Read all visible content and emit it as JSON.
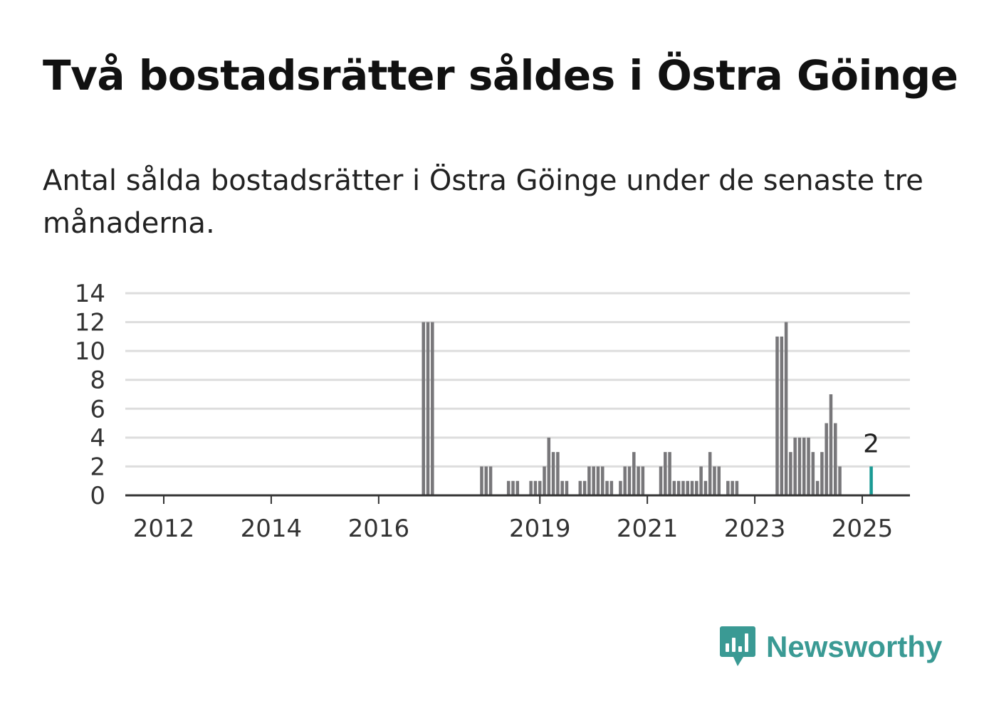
{
  "title": "Två bostadsrätter såldes i Östra Göinge",
  "subtitle": "Antal sålda bostadsrätter i Östra Göinge under de senaste tre månaderna.",
  "logo": {
    "text": "Newsworthy",
    "icon": "newsworthy-logo-icon",
    "color": "#3a9a94"
  },
  "chart_data": {
    "type": "bar",
    "title": "",
    "xlabel": "",
    "ylabel": "",
    "ylim": [
      0,
      14
    ],
    "yticks": [
      0,
      2,
      4,
      6,
      8,
      10,
      12,
      14
    ],
    "xticks": [
      {
        "label": "2012",
        "date": "2012-01"
      },
      {
        "label": "2014",
        "date": "2014-01"
      },
      {
        "label": "2016",
        "date": "2016-01"
      },
      {
        "label": "2019",
        "date": "2019-01"
      },
      {
        "label": "2021",
        "date": "2021-01"
      },
      {
        "label": "2023",
        "date": "2023-01"
      },
      {
        "label": "2025",
        "date": "2025-01"
      }
    ],
    "grid": true,
    "bar_color": "#78777a",
    "highlight_color": "#1a9a94",
    "highlight_label": "2",
    "data": [
      {
        "date": "2016-11",
        "value": 12
      },
      {
        "date": "2016-12",
        "value": 12
      },
      {
        "date": "2017-01",
        "value": 12
      },
      {
        "date": "2017-12",
        "value": 2
      },
      {
        "date": "2018-01",
        "value": 2
      },
      {
        "date": "2018-02",
        "value": 2
      },
      {
        "date": "2018-06",
        "value": 1
      },
      {
        "date": "2018-07",
        "value": 1
      },
      {
        "date": "2018-08",
        "value": 1
      },
      {
        "date": "2018-11",
        "value": 1
      },
      {
        "date": "2018-12",
        "value": 1
      },
      {
        "date": "2019-01",
        "value": 1
      },
      {
        "date": "2019-02",
        "value": 2
      },
      {
        "date": "2019-03",
        "value": 4
      },
      {
        "date": "2019-04",
        "value": 3
      },
      {
        "date": "2019-05",
        "value": 3
      },
      {
        "date": "2019-06",
        "value": 1
      },
      {
        "date": "2019-07",
        "value": 1
      },
      {
        "date": "2019-10",
        "value": 1
      },
      {
        "date": "2019-11",
        "value": 1
      },
      {
        "date": "2019-12",
        "value": 2
      },
      {
        "date": "2020-01",
        "value": 2
      },
      {
        "date": "2020-02",
        "value": 2
      },
      {
        "date": "2020-03",
        "value": 2
      },
      {
        "date": "2020-04",
        "value": 1
      },
      {
        "date": "2020-05",
        "value": 1
      },
      {
        "date": "2020-07",
        "value": 1
      },
      {
        "date": "2020-08",
        "value": 2
      },
      {
        "date": "2020-09",
        "value": 2
      },
      {
        "date": "2020-10",
        "value": 3
      },
      {
        "date": "2020-11",
        "value": 2
      },
      {
        "date": "2020-12",
        "value": 2
      },
      {
        "date": "2021-04",
        "value": 2
      },
      {
        "date": "2021-05",
        "value": 3
      },
      {
        "date": "2021-06",
        "value": 3
      },
      {
        "date": "2021-07",
        "value": 1
      },
      {
        "date": "2021-08",
        "value": 1
      },
      {
        "date": "2021-09",
        "value": 1
      },
      {
        "date": "2021-10",
        "value": 1
      },
      {
        "date": "2021-11",
        "value": 1
      },
      {
        "date": "2021-12",
        "value": 1
      },
      {
        "date": "2022-01",
        "value": 2
      },
      {
        "date": "2022-02",
        "value": 1
      },
      {
        "date": "2022-03",
        "value": 3
      },
      {
        "date": "2022-04",
        "value": 2
      },
      {
        "date": "2022-05",
        "value": 2
      },
      {
        "date": "2022-07",
        "value": 1
      },
      {
        "date": "2022-08",
        "value": 1
      },
      {
        "date": "2022-09",
        "value": 1
      },
      {
        "date": "2023-06",
        "value": 11
      },
      {
        "date": "2023-07",
        "value": 11
      },
      {
        "date": "2023-08",
        "value": 12
      },
      {
        "date": "2023-09",
        "value": 3
      },
      {
        "date": "2023-10",
        "value": 4
      },
      {
        "date": "2023-11",
        "value": 4
      },
      {
        "date": "2023-12",
        "value": 4
      },
      {
        "date": "2024-01",
        "value": 4
      },
      {
        "date": "2024-02",
        "value": 3
      },
      {
        "date": "2024-03",
        "value": 1
      },
      {
        "date": "2024-04",
        "value": 3
      },
      {
        "date": "2024-05",
        "value": 5
      },
      {
        "date": "2024-06",
        "value": 7
      },
      {
        "date": "2024-07",
        "value": 5
      },
      {
        "date": "2024-08",
        "value": 2
      },
      {
        "date": "2025-03",
        "value": 2,
        "highlight": true
      }
    ]
  }
}
